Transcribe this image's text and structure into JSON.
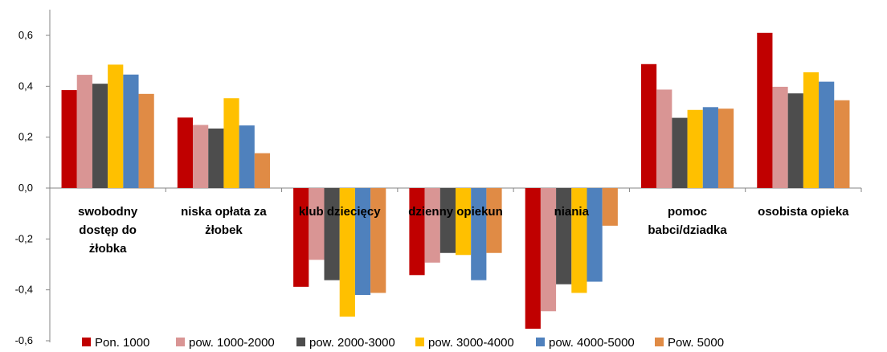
{
  "chart_data": {
    "type": "bar",
    "categories": [
      [
        "swobodny",
        "dostęp do",
        "żłobka"
      ],
      [
        "niska opłata za",
        "żłobek"
      ],
      [
        "klub dziecięcy"
      ],
      [
        "dzienny opiekun"
      ],
      [
        "niania"
      ],
      [
        "pomoc",
        "babci/dziadka"
      ],
      [
        "osobista opieka"
      ]
    ],
    "series": [
      {
        "name": "Pon. 1000",
        "color": "#c00000",
        "values": [
          0.385,
          0.277,
          -0.388,
          -0.342,
          -0.553,
          0.487,
          0.61
        ]
      },
      {
        "name": "pow. 1000-2000",
        "color": "#d99594",
        "values": [
          0.445,
          0.248,
          -0.282,
          -0.293,
          -0.484,
          0.387,
          0.398
        ]
      },
      {
        "name": "pow. 2000-3000",
        "color": "#4d4d4d",
        "values": [
          0.41,
          0.234,
          -0.362,
          -0.255,
          -0.378,
          0.276,
          0.372
        ]
      },
      {
        "name": "pow. 3000-4000",
        "color": "#ffc000",
        "values": [
          0.485,
          0.353,
          -0.505,
          -0.263,
          -0.412,
          0.307,
          0.455
        ]
      },
      {
        "name": "pow. 4000-5000",
        "color": "#4f81bd",
        "values": [
          0.446,
          0.246,
          -0.42,
          -0.362,
          -0.368,
          0.318,
          0.418
        ]
      },
      {
        "name": "Pow. 5000",
        "color": "#e08b45",
        "values": [
          0.37,
          0.137,
          -0.412,
          -0.255,
          -0.148,
          0.312,
          0.345
        ]
      }
    ],
    "yticks": [
      "0,6",
      "0,4",
      "0,2",
      "0,0",
      "-0,2",
      "-0,4",
      "-0,6"
    ],
    "ytick_values": [
      0.6,
      0.4,
      0.2,
      0.0,
      -0.2,
      -0.4,
      -0.6
    ],
    "ylim": [
      -0.6,
      0.6
    ],
    "grid": false,
    "legend_position": "bottom",
    "title": "",
    "xlabel": "",
    "ylabel": ""
  }
}
